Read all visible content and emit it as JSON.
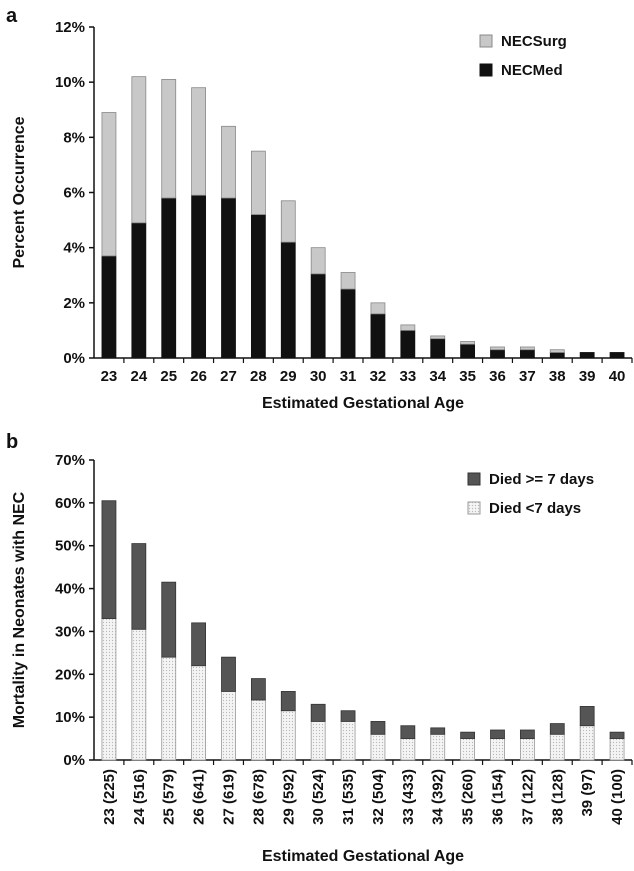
{
  "chart_data": [
    {
      "panel": "a",
      "type": "bar",
      "stacked": true,
      "title": "",
      "xlabel": "Estimated Gestational Age",
      "ylabel": "Percent Occurrence",
      "ylim": [
        0,
        12
      ],
      "yticks": [
        "0%",
        "2%",
        "4%",
        "6%",
        "8%",
        "10%",
        "12%"
      ],
      "grid": false,
      "legend_position": "top-right",
      "categories": [
        "23",
        "24",
        "25",
        "26",
        "27",
        "28",
        "29",
        "30",
        "31",
        "32",
        "33",
        "34",
        "35",
        "36",
        "37",
        "38",
        "39",
        "40"
      ],
      "series": [
        {
          "name": "NECMed",
          "color": "#111111",
          "values": [
            3.7,
            4.9,
            5.8,
            5.9,
            5.8,
            5.2,
            4.2,
            3.05,
            2.5,
            1.6,
            1.0,
            0.7,
            0.5,
            0.3,
            0.3,
            0.2,
            0.2,
            0.2
          ]
        },
        {
          "name": "NECSurg",
          "color": "#c8c8c8",
          "values": [
            5.2,
            5.3,
            4.3,
            3.9,
            2.6,
            2.3,
            1.5,
            0.95,
            0.6,
            0.4,
            0.2,
            0.1,
            0.1,
            0.1,
            0.1,
            0.1,
            0.0,
            0.0
          ]
        }
      ],
      "legend_order": [
        "NECSurg",
        "NECMed"
      ]
    },
    {
      "panel": "b",
      "type": "bar",
      "stacked": true,
      "title": "",
      "xlabel": "Estimated Gestational Age",
      "ylabel": "Mortality in Neonates with NEC",
      "ylim": [
        0,
        70
      ],
      "yticks": [
        "0%",
        "10%",
        "20%",
        "30%",
        "40%",
        "50%",
        "60%",
        "70%"
      ],
      "grid": false,
      "legend_position": "top-right",
      "categories": [
        "23 (225)",
        "24 (516)",
        "25 (579)",
        "26 (641)",
        "27 (619)",
        "28 (678)",
        "29 (592)",
        "30 (524)",
        "31 (535)",
        "32 (504)",
        "33 (433)",
        "34 (392)",
        "35 (260)",
        "36 (154)",
        "37 (122)",
        "38 (128)",
        "39 (97)",
        "40 (100)"
      ],
      "series": [
        {
          "name": "Died <7 days",
          "color": "#eeeeee",
          "values": [
            33,
            30.5,
            24,
            22,
            16,
            14,
            11.5,
            9,
            9,
            6,
            5,
            6,
            5,
            5,
            5,
            6,
            8,
            5
          ]
        },
        {
          "name": "Died >= 7 days",
          "color": "#555555",
          "values": [
            27.5,
            20,
            17.5,
            10,
            8,
            5,
            4.5,
            4,
            2.5,
            3,
            3,
            1.5,
            1.5,
            2,
            2,
            2.5,
            4.5,
            1.5
          ]
        }
      ],
      "legend_order": [
        "Died >= 7 days",
        "Died <7 days"
      ]
    }
  ],
  "panels": {
    "a": {
      "letter": "a"
    },
    "b": {
      "letter": "b"
    }
  }
}
